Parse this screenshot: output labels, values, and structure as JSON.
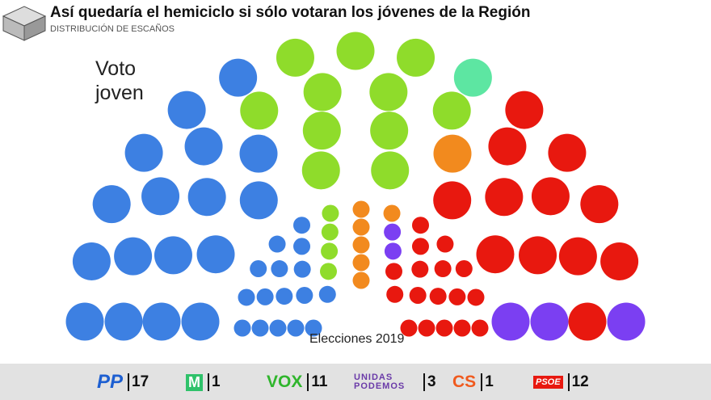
{
  "header": {
    "title": "Así quedaría el hemiciclo si sólo votaran los jóvenes de la Región",
    "subtitle": "DISTRIBUCIÓN DE ESCAÑOS"
  },
  "chart_data": [
    {
      "type": "parliament",
      "title": "Voto joven",
      "categories": [
        "PP",
        "VOX",
        "M",
        "CS",
        "PSOE",
        "UNIDAS PODEMOS"
      ],
      "values": [
        17,
        11,
        1,
        1,
        12,
        3
      ],
      "colors": [
        "#3d80e2",
        "#8fdc2b",
        "#5de6a2",
        "#f28a1e",
        "#e8180f",
        "#7b3ff2"
      ]
    },
    {
      "type": "parliament",
      "title": "Elecciones 2019",
      "values": [
        16,
        4,
        6,
        2,
        17
      ],
      "colors": [
        "#3d80e2",
        "#8fdc2b",
        "#f28a1e",
        "#7b3ff2",
        "#e8180f"
      ]
    }
  ]
}
